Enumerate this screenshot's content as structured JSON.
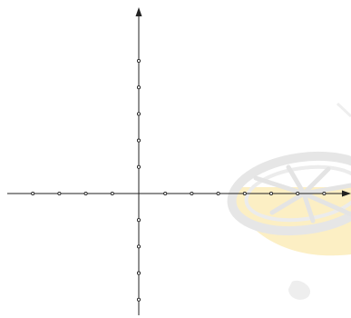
{
  "diagram": {
    "type": "coordinate-axes",
    "x_ticks_left": 4,
    "x_ticks_right": 7,
    "y_ticks_up": 5,
    "y_ticks_down": 4,
    "axis_color": "#222222",
    "tick_fill_color": "#ffffff",
    "axes_have_arrowheads": true
  },
  "watermark": {
    "icon": "lemon-slice-icon",
    "rind_color": "#fcefc4",
    "outline_color": "#eaeaea"
  }
}
